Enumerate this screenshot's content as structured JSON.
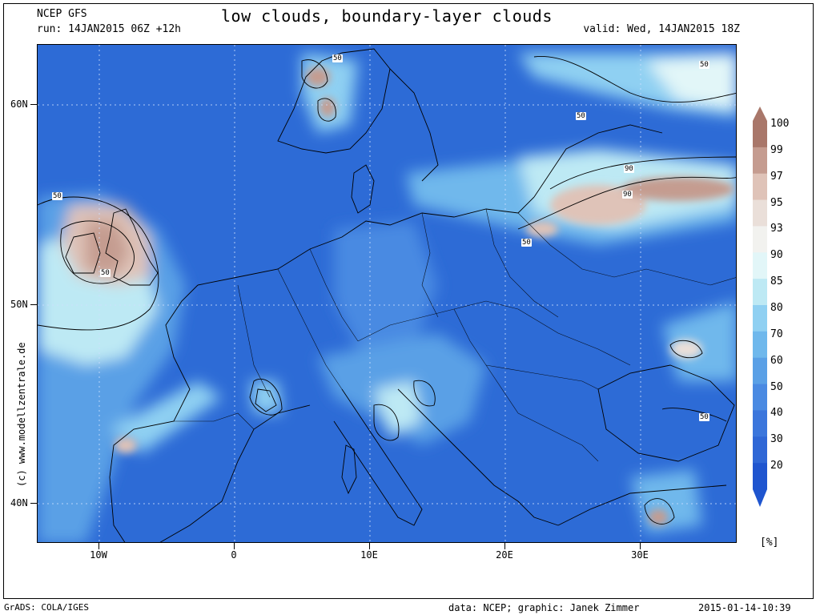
{
  "header": {
    "model": "NCEP GFS",
    "title": "low clouds, boundary-layer clouds",
    "run": "run: 14JAN2015 06Z +12h",
    "valid": "valid: Wed, 14JAN2015 18Z"
  },
  "side_credit": "(c) www.modellzentrale.de",
  "map": {
    "latitude_labels": [
      "60N",
      "50N",
      "40N"
    ],
    "longitude_labels": [
      "10W",
      "0",
      "10E",
      "20E",
      "30E"
    ],
    "contour_labels": [
      "50",
      "50",
      "50",
      "50",
      "50",
      "90",
      "90",
      "50",
      "50",
      "50"
    ]
  },
  "legend": {
    "unit": "[%]",
    "levels": [
      "100",
      "99",
      "97",
      "95",
      "93",
      "90",
      "85",
      "80",
      "70",
      "60",
      "50",
      "40",
      "30",
      "20"
    ],
    "colors": [
      "#a9776a",
      "#c59c90",
      "#dfc3b8",
      "#eadfd9",
      "#f2f2ef",
      "#e2f6f8",
      "#bde9f4",
      "#8fd0f2",
      "#6fb8ec",
      "#5aa0e6",
      "#4a8ae2",
      "#3b76dc",
      "#2f67d6",
      "#1f55cf"
    ]
  },
  "footer": {
    "left": "GrADS: COLA/IGES",
    "middle": "data: NCEP; graphic: Janek Zimmer",
    "right": "2015-01-14-10:39"
  }
}
